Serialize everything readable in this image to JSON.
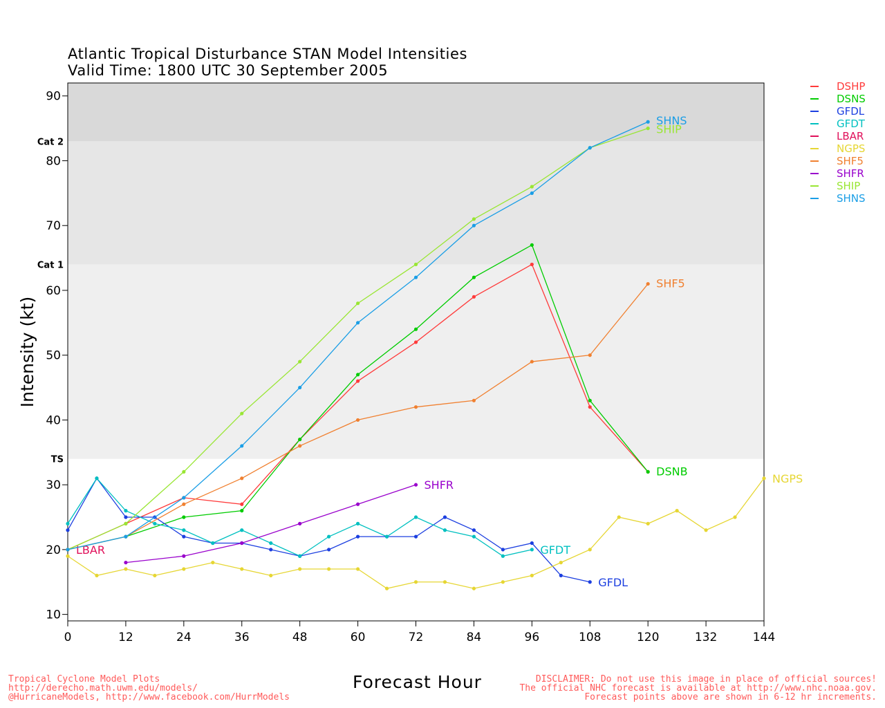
{
  "header": {
    "title_line1": "Atlantic Tropical Disturbance STAN Model Intensities",
    "title_line2": "Valid Time: 1800 UTC 30 September 2005"
  },
  "footer": {
    "left": [
      "Tropical Cyclone Model Plots",
      "http://derecho.math.uwm.edu/models/",
      "@HurricaneModels, http://www.facebook.com/HurrModels"
    ],
    "right": [
      "DISCLAIMER: Do not use this image in place of official sources!",
      "The official NHC forecast is available at http://www.nhc.noaa.gov.",
      "Forecast points above are shown in 6-12 hr increments."
    ]
  },
  "chart_data": {
    "type": "line",
    "xlabel": "Forecast Hour",
    "ylabel": "Intensity (kt)",
    "xlim": [
      0,
      144
    ],
    "ylim": [
      9,
      92
    ],
    "xticks": [
      0,
      12,
      24,
      36,
      48,
      60,
      72,
      84,
      96,
      108,
      120,
      132,
      144
    ],
    "yticks": [
      10,
      20,
      30,
      40,
      50,
      60,
      70,
      80,
      90
    ],
    "grid": false,
    "legend_placement": "right",
    "bands": [
      {
        "from": 34,
        "to": 64,
        "color": "#efefef",
        "label": "TS"
      },
      {
        "from": 64,
        "to": 83,
        "color": "#e6e6e6",
        "label": "Cat 1"
      },
      {
        "from": 83,
        "to": 92,
        "color": "#d9d9d9",
        "label": "Cat 2"
      }
    ],
    "series": [
      {
        "name": "DSHP",
        "color": "#ff3b3b",
        "x": [
          0,
          12,
          24,
          36,
          48,
          60,
          72,
          84,
          96,
          108,
          120
        ],
        "y": [
          20,
          24,
          28,
          27,
          37,
          46,
          52,
          59,
          64,
          42,
          32
        ],
        "end_label": ""
      },
      {
        "name": "DSNS",
        "color": "#00cc00",
        "x": [
          0,
          12,
          24,
          36,
          48,
          60,
          72,
          84,
          96,
          108,
          120
        ],
        "y": [
          20,
          22,
          25,
          26,
          37,
          47,
          54,
          62,
          67,
          43,
          32
        ],
        "end_label": "DSNB"
      },
      {
        "name": "GFDL",
        "color": "#1c3fe0",
        "x": [
          0,
          6,
          12,
          18,
          24,
          30,
          36,
          42,
          48,
          54,
          60,
          66,
          72,
          78,
          84,
          90,
          96,
          102,
          108
        ],
        "y": [
          23,
          31,
          25,
          25,
          22,
          21,
          21,
          20,
          19,
          20,
          22,
          22,
          22,
          25,
          23,
          20,
          21,
          16,
          15
        ],
        "end_label": "GFDL"
      },
      {
        "name": "GFDT",
        "color": "#00c0c0",
        "x": [
          0,
          6,
          12,
          18,
          24,
          30,
          36,
          42,
          48,
          54,
          60,
          66,
          72,
          78,
          84,
          90,
          96
        ],
        "y": [
          24,
          31,
          26,
          24,
          23,
          21,
          23,
          21,
          19,
          22,
          24,
          22,
          25,
          23,
          22,
          19,
          20
        ],
        "end_label": "GFDT"
      },
      {
        "name": "LBAR",
        "color": "#e0105a",
        "x": [
          0
        ],
        "y": [
          20
        ],
        "end_label": "LBAR"
      },
      {
        "name": "NGPS",
        "color": "#e6d633",
        "x": [
          0,
          6,
          12,
          18,
          24,
          30,
          36,
          42,
          48,
          54,
          60,
          66,
          72,
          78,
          84,
          90,
          96,
          102,
          108,
          114,
          120,
          126,
          132,
          138,
          144
        ],
        "y": [
          19,
          16,
          17,
          16,
          17,
          18,
          17,
          16,
          17,
          17,
          17,
          14,
          15,
          15,
          14,
          15,
          16,
          18,
          20,
          25,
          24,
          26,
          23,
          25,
          31
        ],
        "end_label": "NGPS"
      },
      {
        "name": "SHF5",
        "color": "#f08030",
        "x": [
          0,
          12,
          24,
          36,
          48,
          60,
          72,
          84,
          96,
          108,
          120
        ],
        "y": [
          20,
          22,
          27,
          31,
          36,
          40,
          42,
          43,
          49,
          50,
          61
        ],
        "end_label": "SHF5"
      },
      {
        "name": "SHFR",
        "color": "#9900cc",
        "x": [
          12,
          24,
          36,
          48,
          60,
          72
        ],
        "y": [
          18,
          19,
          21,
          24,
          27,
          30
        ],
        "end_label": "SHFR"
      },
      {
        "name": "SHIP",
        "color": "#99e633",
        "x": [
          0,
          12,
          24,
          36,
          48,
          60,
          72,
          84,
          96,
          108,
          120
        ],
        "y": [
          20,
          24,
          32,
          41,
          49,
          58,
          64,
          71,
          76,
          82,
          85
        ],
        "end_label": "SHIP"
      },
      {
        "name": "SHNS",
        "color": "#1a9ee6",
        "x": [
          0,
          12,
          24,
          36,
          48,
          60,
          72,
          84,
          96,
          108,
          120
        ],
        "y": [
          20,
          22,
          28,
          36,
          45,
          55,
          62,
          70,
          75,
          82,
          86
        ],
        "end_label": "SHNS"
      }
    ]
  }
}
